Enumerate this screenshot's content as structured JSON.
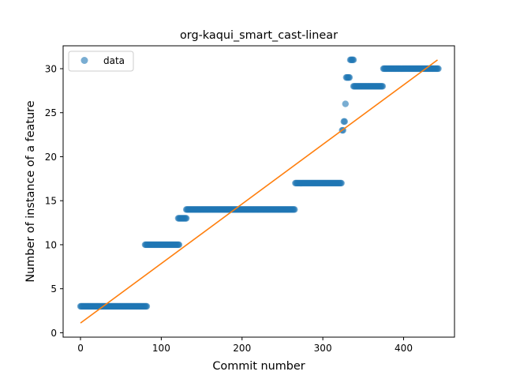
{
  "chart_data": {
    "type": "scatter",
    "title": "org-kaqui_smart_cast-linear",
    "xlabel": "Commit number",
    "ylabel": "Number of instance of a feature",
    "xlim": [
      -21.5,
      463
    ],
    "ylim": [
      -0.5,
      32.6
    ],
    "xticks": [
      0,
      100,
      200,
      300,
      400
    ],
    "yticks": [
      0,
      5,
      10,
      15,
      20,
      25,
      30
    ],
    "grid": false,
    "legend": {
      "position": "top-left",
      "entries": [
        "data"
      ]
    },
    "colors": {
      "data": "#1f77b4",
      "fit": "#ff7f0e"
    },
    "segments": [
      {
        "x_start": 0,
        "x_end": 82,
        "y": 3
      },
      {
        "x_start": 80,
        "x_end": 122,
        "y": 10
      },
      {
        "x_start": 121,
        "x_end": 131,
        "y": 13
      },
      {
        "x_start": 131,
        "x_end": 265,
        "y": 14
      },
      {
        "x_start": 266,
        "x_end": 323,
        "y": 17
      },
      {
        "x_start": 324,
        "x_end": 325,
        "y": 23
      },
      {
        "x_start": 326,
        "x_end": 327,
        "y": 24
      },
      {
        "x_start": 328,
        "x_end": 328,
        "y": 26
      },
      {
        "x_start": 329,
        "x_end": 333,
        "y": 29
      },
      {
        "x_start": 334,
        "x_end": 338,
        "y": 31
      },
      {
        "x_start": 338,
        "x_end": 374,
        "y": 28
      },
      {
        "x_start": 375,
        "x_end": 443,
        "y": 30
      }
    ],
    "series": [
      {
        "name": "data",
        "kind": "scatter"
      },
      {
        "kind": "line",
        "x": [
          0,
          442
        ],
        "y": [
          1.1,
          31.0
        ]
      }
    ]
  }
}
